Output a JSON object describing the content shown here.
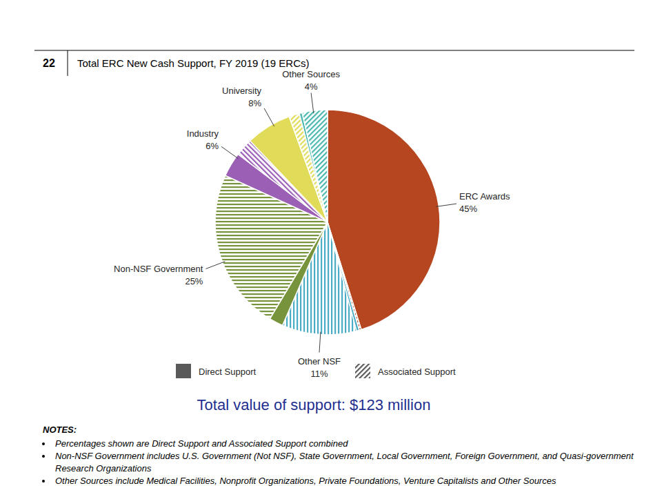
{
  "chart_data": {
    "type": "pie",
    "slide_number": "22",
    "title": "Total ERC New Cash Support, FY 2019 (19 ERCs)",
    "subtitle": "Total value of support: $123 million",
    "categories": [
      "ERC Awards",
      "Other NSF",
      "Non-NSF Government",
      "Industry",
      "University",
      "Other Sources"
    ],
    "values": [
      45,
      11,
      25,
      6,
      8,
      4
    ],
    "value_labels": [
      "45%",
      "11%",
      "25%",
      "6%",
      "8%",
      "4%"
    ],
    "colors": [
      "#b5461f",
      "#4bacc6",
      "#77933c",
      "#9b5fb5",
      "#e0dc5a",
      "#4bb8b0"
    ],
    "series": [
      {
        "name": "Direct Support",
        "color": "#595959",
        "values": [
          44.7,
          0.4,
          2,
          3.5,
          6.5,
          0.4
        ]
      },
      {
        "name": "Associated Support",
        "color": "#595959",
        "values": [
          0.3,
          10.6,
          23,
          2.5,
          1.5,
          3.6
        ]
      }
    ],
    "data_labels": true,
    "legend": "bottom",
    "notes": {
      "heading": "NOTES:",
      "items": [
        "Percentages shown are Direct Support and Associated Support combined",
        "Non-NSF Government includes U.S. Government (Not NSF), State Government, Local Government,  Foreign Government, and Quasi-government Research Organizations",
        "Other Sources include Medical Facilities, Nonprofit Organizations, Private Foundations, Venture Capitalists and Other Sources"
      ]
    }
  }
}
